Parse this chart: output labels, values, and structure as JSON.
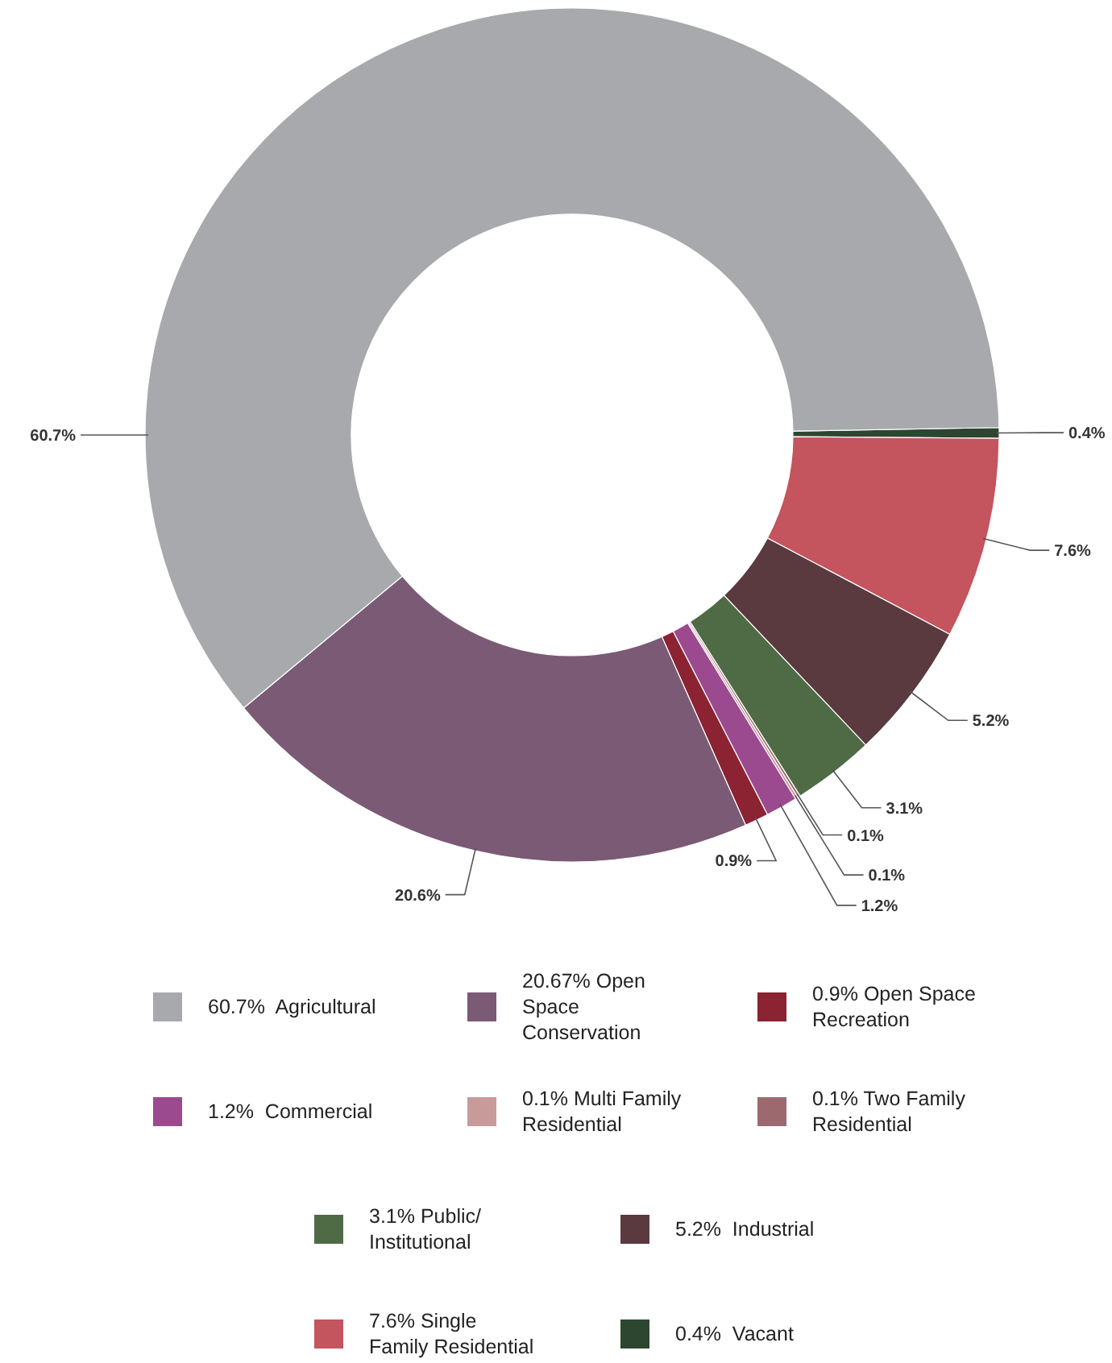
{
  "chart_data": {
    "type": "donut",
    "categories": [
      "60.7%  Agricultural",
      "20.67% Open Space Conservation",
      "0.9% Open Space Recreation",
      "1.2%  Commercial",
      "0.1% Multi Family Residential",
      "0.1% Two Family Residential",
      "3.1% Public/ Institutional",
      "5.2%  Industrial",
      "7.6% Single Family Residential",
      "0.4%  Vacant"
    ],
    "values": [
      60.7,
      20.6,
      0.9,
      1.2,
      0.1,
      0.1,
      3.1,
      5.2,
      7.6,
      0.4
    ],
    "value_labels": [
      "60.7%",
      "20.6%",
      "0.9%",
      "1.2%",
      "0.1%",
      "0.1%",
      "3.1%",
      "5.2%",
      "7.6%",
      "0.4%"
    ],
    "colors": [
      "#a7a9ac",
      "#7a5a75",
      "#8b2332",
      "#9b4a8f",
      "#c99a9a",
      "#9c6a6e",
      "#4e6b46",
      "#5a3a3e",
      "#c4545e",
      "#2d4630"
    ],
    "legend": "bottom"
  }
}
